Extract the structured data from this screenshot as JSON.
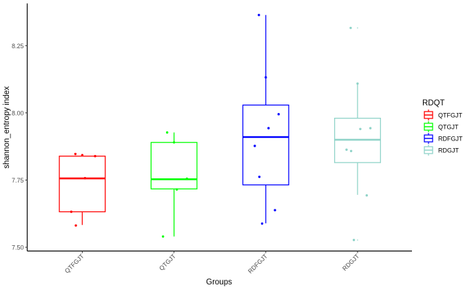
{
  "chart_data": {
    "type": "boxplot",
    "title": "",
    "xlabel": "Groups",
    "ylabel": "shannon_entropy index",
    "ylim": [
      7.486,
      8.407
    ],
    "yticks": [
      7.5,
      7.75,
      8.0,
      8.25
    ],
    "ytick_labels": [
      "7.50",
      "7.75",
      "8.00",
      "8.25"
    ],
    "grid": false,
    "legend": {
      "title": "RDQT",
      "placement": "right"
    },
    "categories": [
      "QTFGJT",
      "QTGJT",
      "RDFGJT",
      "RDGJT"
    ],
    "series": [
      {
        "name": "QTFGJT",
        "color": "#ff0000",
        "whisker_low": 7.583,
        "q1": 7.632,
        "median": 7.756,
        "q3": 7.839,
        "whisker_high": 7.845,
        "outliers": [],
        "points": [
          7.847,
          7.843,
          7.839,
          7.757,
          7.632,
          7.581
        ]
      },
      {
        "name": "QTGJT",
        "color": "#00ff00",
        "whisker_low": 7.54,
        "q1": 7.717,
        "median": 7.753,
        "q3": 7.89,
        "whisker_high": 7.927,
        "outliers": [],
        "points": [
          7.927,
          7.89,
          7.755,
          7.715,
          7.54
        ]
      },
      {
        "name": "RDFGJT",
        "color": "#0000ff",
        "whisker_low": 7.589,
        "q1": 7.732,
        "median": 7.91,
        "q3": 8.029,
        "whisker_high": 8.364,
        "outliers": [],
        "points": [
          8.364,
          8.132,
          7.995,
          7.943,
          7.877,
          7.762,
          7.638,
          7.588
        ]
      },
      {
        "name": "RDGJT",
        "color": "#8fd3c8",
        "whisker_low": 7.695,
        "q1": 7.815,
        "median": 7.9,
        "q3": 7.98,
        "whisker_high": 8.107,
        "outliers": [
          8.316,
          7.527
        ],
        "points": [
          8.316,
          8.109,
          7.943,
          7.94,
          7.863,
          7.858,
          7.693,
          7.527
        ]
      }
    ]
  }
}
